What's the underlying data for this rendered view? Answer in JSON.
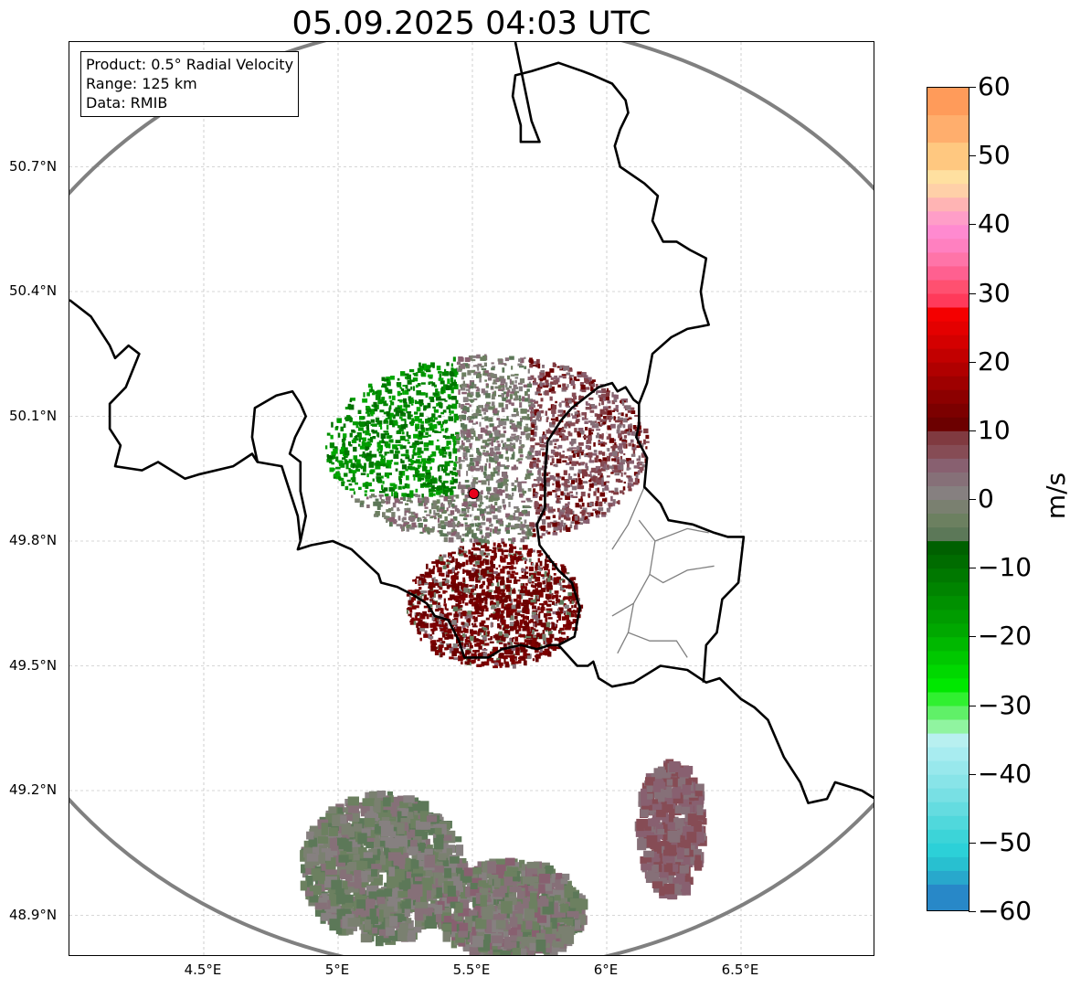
{
  "title": "05.09.2025 04:03 UTC",
  "info_box": {
    "product": "Product: 0.5° Radial Velocity",
    "range": "Range: 125 km",
    "data": "Data: RMIB"
  },
  "map": {
    "lon_range": [
      4.0,
      7.0
    ],
    "lat_range": [
      48.8,
      51.0
    ],
    "radar_site": {
      "lon": 5.505,
      "lat": 49.914,
      "color": "#e8001c"
    },
    "range_ring_color": "#808080",
    "gridlines": true,
    "lat_ticks": [
      {
        "value": 50.7,
        "label": "50.7°N"
      },
      {
        "value": 50.4,
        "label": "50.4°N"
      },
      {
        "value": 50.1,
        "label": "50.1°N"
      },
      {
        "value": 49.8,
        "label": "49.8°N"
      },
      {
        "value": 49.5,
        "label": "49.5°N"
      },
      {
        "value": 49.2,
        "label": "49.2°N"
      },
      {
        "value": 48.9,
        "label": "48.9°N"
      }
    ],
    "lon_ticks": [
      {
        "value": 4.5,
        "label": "4.5°E"
      },
      {
        "value": 5.0,
        "label": "5°E"
      },
      {
        "value": 5.5,
        "label": "5.5°E"
      },
      {
        "value": 6.0,
        "label": "6°E"
      },
      {
        "value": 6.5,
        "label": "6.5°E"
      }
    ],
    "borders": [
      [
        [
          4.0,
          50.38
        ],
        [
          4.08,
          50.34
        ],
        [
          4.15,
          50.27
        ],
        [
          4.17,
          50.24
        ],
        [
          4.22,
          50.27
        ],
        [
          4.26,
          50.25
        ],
        [
          4.21,
          50.17
        ],
        [
          4.15,
          50.13
        ],
        [
          4.15,
          50.07
        ],
        [
          4.19,
          50.03
        ],
        [
          4.17,
          49.98
        ],
        [
          4.27,
          49.97
        ],
        [
          4.33,
          49.99
        ],
        [
          4.43,
          49.95
        ],
        [
          4.48,
          49.96
        ],
        [
          4.61,
          49.98
        ],
        [
          4.68,
          50.01
        ],
        [
          4.7,
          49.99
        ],
        [
          4.79,
          49.98
        ],
        [
          4.8,
          49.96
        ],
        [
          4.85,
          49.86
        ],
        [
          4.86,
          49.8
        ],
        [
          4.85,
          49.78
        ],
        [
          4.9,
          49.79
        ],
        [
          4.98,
          49.8
        ],
        [
          5.05,
          49.78
        ],
        [
          5.1,
          49.75
        ],
        [
          5.15,
          49.72
        ],
        [
          5.16,
          49.7
        ],
        [
          5.22,
          49.69
        ],
        [
          5.28,
          49.67
        ],
        [
          5.33,
          49.65
        ],
        [
          5.36,
          49.62
        ],
        [
          5.41,
          49.61
        ],
        [
          5.45,
          49.56
        ],
        [
          5.47,
          49.52
        ],
        [
          5.56,
          49.52
        ],
        [
          5.61,
          49.54
        ],
        [
          5.68,
          49.55
        ],
        [
          5.74,
          49.54
        ],
        [
          5.79,
          49.55
        ],
        [
          5.82,
          49.55
        ]
      ],
      [
        [
          4.7,
          49.99
        ],
        [
          4.68,
          50.05
        ],
        [
          4.69,
          50.12
        ],
        [
          4.77,
          50.15
        ],
        [
          4.83,
          50.16
        ],
        [
          4.86,
          50.13
        ],
        [
          4.88,
          50.1
        ],
        [
          4.84,
          50.05
        ],
        [
          4.82,
          50.01
        ],
        [
          4.86,
          49.99
        ],
        [
          4.86,
          49.92
        ],
        [
          4.88,
          49.86
        ],
        [
          4.86,
          49.8
        ]
      ],
      [
        [
          5.82,
          49.55
        ],
        [
          5.89,
          49.5
        ],
        [
          5.93,
          49.5
        ],
        [
          5.95,
          49.51
        ],
        [
          5.97,
          49.47
        ],
        [
          6.02,
          49.45
        ],
        [
          6.1,
          49.46
        ],
        [
          6.2,
          49.5
        ],
        [
          6.3,
          49.49
        ],
        [
          6.37,
          49.46
        ],
        [
          6.42,
          49.47
        ],
        [
          6.5,
          49.42
        ],
        [
          6.55,
          49.4
        ],
        [
          6.6,
          49.37
        ],
        [
          6.66,
          49.28
        ],
        [
          6.72,
          49.22
        ],
        [
          6.75,
          49.17
        ],
        [
          6.82,
          49.18
        ],
        [
          6.85,
          49.22
        ],
        [
          6.9,
          49.21
        ],
        [
          6.95,
          49.2
        ],
        [
          7.0,
          49.18
        ]
      ],
      [
        [
          5.82,
          49.55
        ],
        [
          5.88,
          49.57
        ],
        [
          5.9,
          49.64
        ],
        [
          5.87,
          49.7
        ],
        [
          5.82,
          49.73
        ],
        [
          5.75,
          49.79
        ],
        [
          5.74,
          49.84
        ],
        [
          5.77,
          49.88
        ],
        [
          5.77,
          49.96
        ],
        [
          5.78,
          50.04
        ],
        [
          5.83,
          50.09
        ],
        [
          5.87,
          50.12
        ],
        [
          5.97,
          50.17
        ],
        [
          6.02,
          50.18
        ],
        [
          6.04,
          50.16
        ],
        [
          6.07,
          50.17
        ],
        [
          6.1,
          50.14
        ],
        [
          6.12,
          50.13
        ]
      ],
      [
        [
          6.12,
          50.13
        ],
        [
          6.12,
          50.08
        ],
        [
          6.11,
          50.05
        ],
        [
          6.15,
          50.0
        ],
        [
          6.14,
          49.93
        ],
        [
          6.2,
          49.89
        ],
        [
          6.23,
          49.85
        ],
        [
          6.32,
          49.84
        ],
        [
          6.4,
          49.82
        ],
        [
          6.45,
          49.81
        ],
        [
          6.51,
          49.81
        ],
        [
          6.49,
          49.7
        ],
        [
          6.43,
          49.66
        ],
        [
          6.41,
          49.58
        ],
        [
          6.37,
          49.55
        ],
        [
          6.36,
          49.46
        ]
      ],
      [
        [
          6.12,
          50.13
        ],
        [
          6.15,
          50.18
        ],
        [
          6.17,
          50.25
        ],
        [
          6.24,
          50.29
        ],
        [
          6.3,
          50.31
        ],
        [
          6.38,
          50.32
        ],
        [
          6.36,
          50.36
        ],
        [
          6.35,
          50.4
        ],
        [
          6.37,
          50.48
        ],
        [
          6.31,
          50.5
        ],
        [
          6.26,
          50.52
        ],
        [
          6.21,
          50.52
        ],
        [
          6.17,
          50.57
        ],
        [
          6.19,
          50.63
        ],
        [
          6.14,
          50.66
        ],
        [
          6.05,
          50.7
        ],
        [
          6.03,
          50.75
        ],
        [
          6.05,
          50.79
        ],
        [
          6.08,
          50.83
        ],
        [
          6.07,
          50.86
        ],
        [
          6.02,
          50.9
        ],
        [
          5.95,
          50.92
        ],
        [
          5.91,
          50.93
        ],
        [
          5.82,
          50.95
        ],
        [
          5.72,
          50.93
        ],
        [
          5.66,
          50.92
        ],
        [
          5.65,
          50.87
        ],
        [
          5.68,
          50.8
        ],
        [
          5.68,
          50.76
        ],
        [
          5.75,
          50.76
        ],
        [
          5.72,
          50.81
        ],
        [
          5.66,
          51.0
        ]
      ]
    ],
    "admin_lines": [
      [
        [
          6.12,
          49.85
        ],
        [
          6.18,
          49.8
        ],
        [
          6.3,
          49.83
        ],
        [
          6.38,
          49.82
        ]
      ],
      [
        [
          6.14,
          49.93
        ],
        [
          6.08,
          49.84
        ],
        [
          6.02,
          49.78
        ]
      ],
      [
        [
          6.18,
          49.8
        ],
        [
          6.16,
          49.72
        ],
        [
          6.21,
          49.7
        ],
        [
          6.3,
          49.73
        ],
        [
          6.4,
          49.74
        ]
      ],
      [
        [
          6.16,
          49.72
        ],
        [
          6.1,
          49.65
        ],
        [
          6.08,
          49.58
        ],
        [
          6.16,
          49.56
        ],
        [
          6.26,
          49.56
        ],
        [
          6.3,
          49.52
        ]
      ],
      [
        [
          6.1,
          49.65
        ],
        [
          6.02,
          49.62
        ]
      ],
      [
        [
          6.08,
          49.58
        ],
        [
          6.04,
          49.53
        ]
      ]
    ]
  },
  "echoes": {
    "north_cluster": {
      "lon": [
        4.95,
        6.15
      ],
      "lat": [
        49.8,
        50.25
      ]
    },
    "south_cluster": {
      "lon": [
        5.25,
        5.9
      ],
      "lat": [
        49.5,
        49.8
      ]
    },
    "storm_southwest": {
      "lon": [
        4.85,
        5.45
      ],
      "lat": [
        48.85,
        49.2
      ]
    },
    "storm_south": {
      "lon": [
        5.35,
        5.9
      ],
      "lat": [
        48.8,
        49.04
      ]
    },
    "storm_southeast": {
      "lon": [
        6.1,
        6.35
      ],
      "lat": [
        48.96,
        49.28
      ]
    }
  },
  "colorbar": {
    "label": "m/s",
    "min": -60,
    "max": 60,
    "ticks": [
      {
        "value": 60,
        "label": "60"
      },
      {
        "value": 50,
        "label": "50"
      },
      {
        "value": 40,
        "label": "40"
      },
      {
        "value": 30,
        "label": "30"
      },
      {
        "value": 20,
        "label": "20"
      },
      {
        "value": 10,
        "label": "10"
      },
      {
        "value": 0,
        "label": "0"
      },
      {
        "value": -10,
        "label": "−10"
      },
      {
        "value": -20,
        "label": "−20"
      },
      {
        "value": -30,
        "label": "−30"
      },
      {
        "value": -40,
        "label": "−40"
      },
      {
        "value": -50,
        "label": "−50"
      },
      {
        "value": -60,
        "label": "−60"
      }
    ],
    "bands": [
      {
        "from": 56,
        "to": 60,
        "color": "#ff9b5a"
      },
      {
        "from": 52,
        "to": 56,
        "color": "#ffae6d"
      },
      {
        "from": 48,
        "to": 52,
        "color": "#ffc880"
      },
      {
        "from": 46,
        "to": 48,
        "color": "#ffe0a0"
      },
      {
        "from": 44,
        "to": 46,
        "color": "#ffd0a8"
      },
      {
        "from": 42,
        "to": 44,
        "color": "#ffb4b4"
      },
      {
        "from": 40,
        "to": 42,
        "color": "#ff9ec8"
      },
      {
        "from": 38,
        "to": 40,
        "color": "#ff8ad0"
      },
      {
        "from": 36,
        "to": 38,
        "color": "#ff80c0"
      },
      {
        "from": 34,
        "to": 36,
        "color": "#ff74a8"
      },
      {
        "from": 32,
        "to": 34,
        "color": "#ff6090"
      },
      {
        "from": 30,
        "to": 32,
        "color": "#ff5070"
      },
      {
        "from": 28,
        "to": 30,
        "color": "#ff3a5a"
      },
      {
        "from": 26,
        "to": 28,
        "color": "#f40000"
      },
      {
        "from": 24,
        "to": 26,
        "color": "#e40000"
      },
      {
        "from": 22,
        "to": 24,
        "color": "#d40000"
      },
      {
        "from": 20,
        "to": 22,
        "color": "#c20000"
      },
      {
        "from": 18,
        "to": 20,
        "color": "#b00000"
      },
      {
        "from": 16,
        "to": 18,
        "color": "#9e0000"
      },
      {
        "from": 14,
        "to": 16,
        "color": "#8c0000"
      },
      {
        "from": 12,
        "to": 14,
        "color": "#7c0000"
      },
      {
        "from": 10,
        "to": 12,
        "color": "#6c0000"
      },
      {
        "from": 8,
        "to": 10,
        "color": "#803a40"
      },
      {
        "from": 6,
        "to": 8,
        "color": "#864c55"
      },
      {
        "from": 4,
        "to": 6,
        "color": "#886070"
      },
      {
        "from": 2,
        "to": 4,
        "color": "#867078"
      },
      {
        "from": 0,
        "to": 2,
        "color": "#868080"
      },
      {
        "from": -2,
        "to": 0,
        "color": "#7a8070"
      },
      {
        "from": -4,
        "to": -2,
        "color": "#6c8060"
      },
      {
        "from": -6,
        "to": -4,
        "color": "#5c7858"
      },
      {
        "from": -8,
        "to": -6,
        "color": "#006000"
      },
      {
        "from": -10,
        "to": -8,
        "color": "#006c00"
      },
      {
        "from": -12,
        "to": -10,
        "color": "#007800"
      },
      {
        "from": -14,
        "to": -12,
        "color": "#008400"
      },
      {
        "from": -16,
        "to": -14,
        "color": "#009000"
      },
      {
        "from": -18,
        "to": -16,
        "color": "#009c00"
      },
      {
        "from": -20,
        "to": -18,
        "color": "#00a800"
      },
      {
        "from": -22,
        "to": -20,
        "color": "#00b800"
      },
      {
        "from": -24,
        "to": -22,
        "color": "#00c800"
      },
      {
        "from": -26,
        "to": -24,
        "color": "#00d800"
      },
      {
        "from": -28,
        "to": -26,
        "color": "#00e800"
      },
      {
        "from": -30,
        "to": -28,
        "color": "#30f030"
      },
      {
        "from": -32,
        "to": -30,
        "color": "#60f068"
      },
      {
        "from": -34,
        "to": -32,
        "color": "#90f4a0"
      },
      {
        "from": -36,
        "to": -34,
        "color": "#b8f0f0"
      },
      {
        "from": -38,
        "to": -36,
        "color": "#a8ecf0"
      },
      {
        "from": -40,
        "to": -38,
        "color": "#98e8ec"
      },
      {
        "from": -42,
        "to": -40,
        "color": "#88e4e8"
      },
      {
        "from": -44,
        "to": -42,
        "color": "#78e0e4"
      },
      {
        "from": -46,
        "to": -44,
        "color": "#64dce0"
      },
      {
        "from": -48,
        "to": -46,
        "color": "#50d8dc"
      },
      {
        "from": -50,
        "to": -48,
        "color": "#3cd4d8"
      },
      {
        "from": -52,
        "to": -50,
        "color": "#2cd0d8"
      },
      {
        "from": -54,
        "to": -52,
        "color": "#28c0d0"
      },
      {
        "from": -56,
        "to": -54,
        "color": "#28a8cc"
      },
      {
        "from": -60,
        "to": -56,
        "color": "#2888c8"
      }
    ]
  }
}
